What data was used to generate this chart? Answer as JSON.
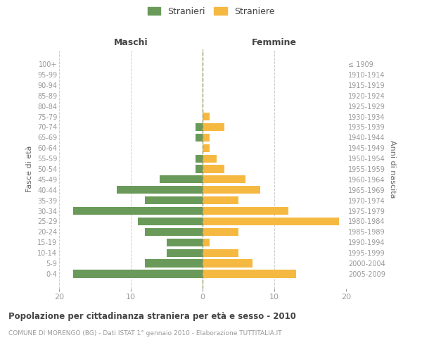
{
  "age_groups": [
    "100+",
    "95-99",
    "90-94",
    "85-89",
    "80-84",
    "75-79",
    "70-74",
    "65-69",
    "60-64",
    "55-59",
    "50-54",
    "45-49",
    "40-44",
    "35-39",
    "30-34",
    "25-29",
    "20-24",
    "15-19",
    "10-14",
    "5-9",
    "0-4"
  ],
  "birth_years": [
    "≤ 1909",
    "1910-1914",
    "1915-1919",
    "1920-1924",
    "1925-1929",
    "1930-1934",
    "1935-1939",
    "1940-1944",
    "1945-1949",
    "1950-1954",
    "1955-1959",
    "1960-1964",
    "1965-1969",
    "1970-1974",
    "1975-1979",
    "1980-1984",
    "1985-1989",
    "1990-1994",
    "1995-1999",
    "2000-2004",
    "2005-2009"
  ],
  "maschi": [
    0,
    0,
    0,
    0,
    0,
    0,
    1,
    1,
    0,
    1,
    1,
    6,
    12,
    8,
    18,
    9,
    8,
    5,
    5,
    8,
    18
  ],
  "femmine": [
    0,
    0,
    0,
    0,
    0,
    1,
    3,
    1,
    1,
    2,
    3,
    6,
    8,
    5,
    12,
    19,
    5,
    1,
    5,
    7,
    13
  ],
  "maschi_color": "#6a9a5a",
  "femmine_color": "#f5b942",
  "legend_stranieri": "Stranieri",
  "legend_straniere": "Straniere",
  "left_title": "Maschi",
  "right_title": "Femmine",
  "ylabel": "Fasce di età",
  "ylabel_right": "Anni di nascita",
  "xlim": 20,
  "main_title": "Popolazione per cittadinanza straniera per età e sesso - 2010",
  "subtitle": "COMUNE DI MORENGO (BG) - Dati ISTAT 1° gennaio 2010 - Elaborazione TUTTITALIA.IT",
  "background_color": "#ffffff",
  "grid_color": "#cccccc",
  "bar_height": 0.75,
  "text_color": "#999999",
  "title_color": "#444444",
  "axis_label_color": "#666666"
}
